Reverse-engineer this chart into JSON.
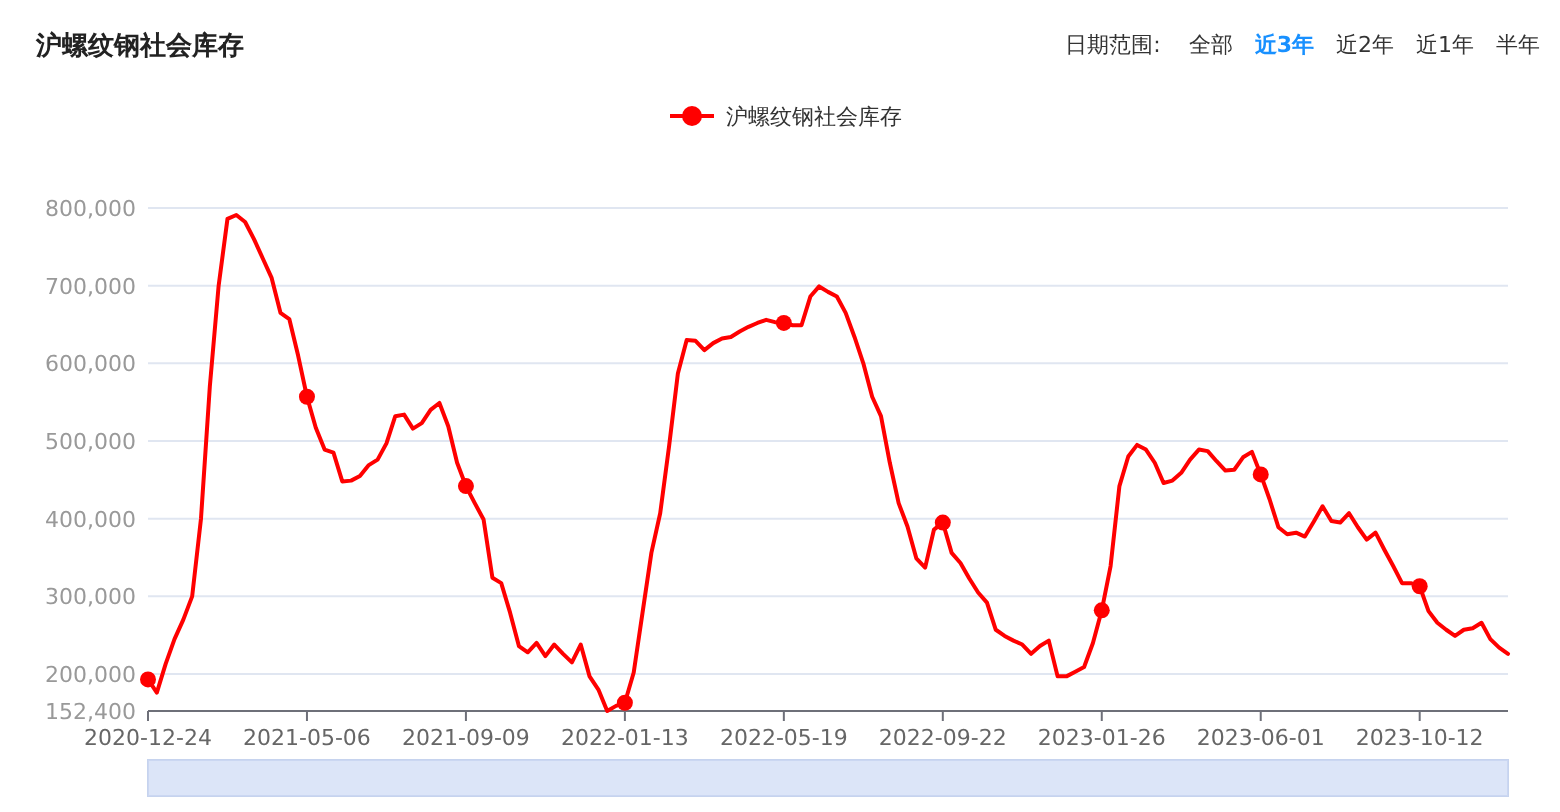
{
  "chart_data": {
    "type": "line",
    "title": "沪螺纹钢社会库存",
    "annotations": [
      "日期范围:",
      "全部",
      "近3年",
      "近2年",
      "近1年",
      "半年"
    ],
    "categories": [
      "2020-12-24",
      null,
      null,
      null,
      null,
      null,
      null,
      null,
      null,
      null,
      null,
      null,
      null,
      null,
      null,
      null,
      null,
      null,
      "2021-05-06",
      null,
      null,
      null,
      null,
      null,
      null,
      null,
      null,
      null,
      null,
      null,
      null,
      null,
      null,
      null,
      null,
      null,
      "2021-09-09",
      null,
      null,
      null,
      null,
      null,
      null,
      null,
      null,
      null,
      null,
      null,
      null,
      null,
      null,
      null,
      null,
      null,
      "2022-01-13",
      null,
      null,
      null,
      null,
      null,
      null,
      null,
      null,
      null,
      null,
      null,
      null,
      null,
      null,
      null,
      null,
      null,
      "2022-05-19",
      null,
      null,
      null,
      null,
      null,
      null,
      null,
      null,
      null,
      null,
      null,
      null,
      null,
      null,
      null,
      null,
      null,
      "2022-09-22",
      null,
      null,
      null,
      null,
      null,
      null,
      null,
      null,
      null,
      null,
      null,
      null,
      null,
      null,
      null,
      null,
      null,
      "2023-01-26",
      null,
      null,
      null,
      null,
      null,
      null,
      null,
      null,
      null,
      null,
      null,
      null,
      null,
      null,
      null,
      null,
      null,
      "2023-06-01",
      null,
      null,
      null,
      null,
      null,
      null,
      null,
      null,
      null,
      null,
      null,
      null,
      null,
      null,
      null,
      null,
      null,
      "2023-10-12",
      null,
      null,
      null,
      null,
      null,
      null,
      null,
      null,
      null,
      null
    ],
    "series": [
      {
        "name": "沪螺纹钢社会库存",
        "color": "#ff0000",
        "values": [
          193000,
          176000,
          213000,
          245000,
          270000,
          300000,
          400000,
          570000,
          700000,
          786000,
          791000,
          782000,
          760000,
          735000,
          710000,
          665000,
          657000,
          610000,
          557000,
          517000,
          489000,
          485000,
          448000,
          449000,
          455000,
          469000,
          476000,
          497000,
          532000,
          534000,
          516000,
          523000,
          540000,
          549000,
          519000,
          472000,
          442000,
          420000,
          399000,
          324000,
          317000,
          279000,
          236000,
          228000,
          240000,
          223000,
          238000,
          226000,
          215000,
          238000,
          197000,
          180000,
          152400,
          159000,
          163000,
          202000,
          279000,
          356000,
          407000,
          493000,
          587000,
          630000,
          629000,
          617000,
          626000,
          632000,
          634000,
          641000,
          647000,
          652000,
          656000,
          653000,
          652000,
          649000,
          649000,
          686000,
          699000,
          692000,
          686000,
          665000,
          634000,
          600000,
          557000,
          532000,
          472000,
          420000,
          390000,
          349000,
          337000,
          386000,
          395000,
          356000,
          343000,
          323000,
          305000,
          292000,
          257000,
          249000,
          243000,
          238000,
          226000,
          236000,
          243000,
          197000,
          197000,
          203000,
          209000,
          240000,
          282000,
          339000,
          442000,
          480000,
          495000,
          489000,
          472000,
          446000,
          449000,
          459000,
          476000,
          489000,
          487000,
          474000,
          462000,
          463000,
          479000,
          486000,
          457000,
          425000,
          389000,
          380000,
          382000,
          377000,
          396000,
          416000,
          397000,
          395000,
          407000,
          389000,
          373000,
          382000,
          360000,
          339000,
          317000,
          317000,
          313000,
          281000,
          266000,
          257000,
          249000,
          257000,
          259000,
          266000,
          245000,
          234000,
          226000
        ]
      },
      {
        "type": "scatter",
        "color": "#ff0000",
        "values": [
          193000,
          null,
          null,
          null,
          null,
          null,
          null,
          null,
          null,
          null,
          null,
          null,
          null,
          null,
          null,
          null,
          null,
          null,
          557000,
          null,
          null,
          null,
          null,
          null,
          null,
          null,
          null,
          null,
          null,
          null,
          null,
          null,
          null,
          null,
          null,
          null,
          442000,
          null,
          null,
          null,
          null,
          null,
          null,
          null,
          null,
          null,
          null,
          null,
          null,
          null,
          null,
          null,
          null,
          null,
          163000,
          null,
          null,
          null,
          null,
          null,
          null,
          null,
          null,
          null,
          null,
          null,
          null,
          null,
          null,
          null,
          null,
          null,
          652000,
          null,
          null,
          null,
          null,
          null,
          null,
          null,
          null,
          null,
          null,
          null,
          null,
          null,
          null,
          null,
          null,
          null,
          395000,
          null,
          null,
          null,
          null,
          null,
          null,
          null,
          null,
          null,
          null,
          null,
          null,
          null,
          null,
          null,
          null,
          null,
          282000,
          null,
          null,
          null,
          null,
          null,
          null,
          null,
          null,
          null,
          null,
          null,
          null,
          null,
          null,
          null,
          null,
          null,
          457000,
          null,
          null,
          null,
          null,
          null,
          null,
          null,
          null,
          null,
          null,
          null,
          null,
          null,
          null,
          null,
          null,
          null,
          313000,
          null,
          null,
          null,
          null,
          null,
          null,
          null,
          null,
          null,
          null
        ]
      }
    ],
    "ylim": [
      152400,
      800000
    ],
    "yticks": [
      {
        "value": 152400,
        "label": "152,400"
      },
      {
        "value": 200000,
        "label": "200,000"
      },
      {
        "value": 300000,
        "label": "300,000"
      },
      {
        "value": 400000,
        "label": "400,000"
      },
      {
        "value": 500000,
        "label": "500,000"
      },
      {
        "value": 600000,
        "label": "600,000"
      },
      {
        "value": 700000,
        "label": "700,000"
      },
      {
        "value": 800000,
        "label": "800,000"
      }
    ],
    "grid": "y",
    "legend": "top",
    "line_style": "solid"
  }
}
